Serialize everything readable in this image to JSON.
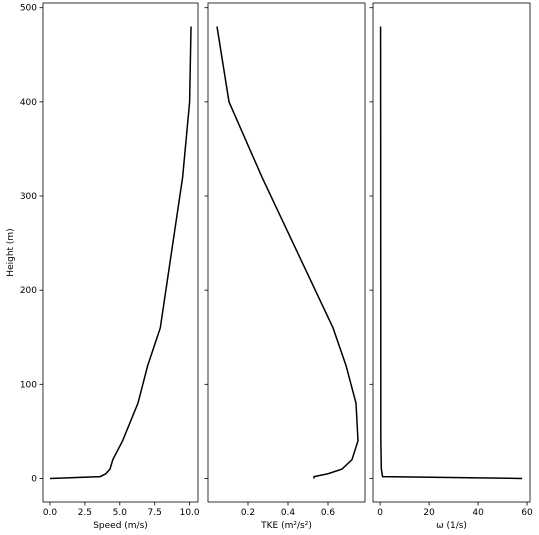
{
  "chart_data": [
    {
      "type": "line",
      "xlabel": "Speed (m/s)",
      "ylabel": "Height (m)",
      "color": "#000000",
      "x": [
        0,
        3.6,
        4.0,
        4.3,
        4.5,
        5.2,
        6.3,
        7.0,
        7.9,
        8.7,
        9.5,
        10.0,
        10.1
      ],
      "values": [
        0,
        2,
        5,
        10,
        20,
        40,
        80,
        120,
        160,
        240,
        320,
        400,
        480
      ],
      "xlim": [
        -0.5,
        10.6
      ],
      "xticks": [
        {
          "value": 0,
          "label": "0.0"
        },
        {
          "value": 2.5,
          "label": "2.5"
        },
        {
          "value": 5,
          "label": "5.0"
        },
        {
          "value": 7.5,
          "label": "7.5"
        },
        {
          "value": 10,
          "label": "10.0"
        }
      ],
      "ylim": [
        -25,
        505
      ],
      "yticks": [
        0,
        100,
        200,
        300,
        400,
        500
      ]
    },
    {
      "type": "line",
      "xlabel": "TKE (m²/s²)",
      "color": "#000000",
      "x": [
        0.53,
        0.53,
        0.6,
        0.67,
        0.72,
        0.75,
        0.74,
        0.69,
        0.625,
        0.27,
        0.105,
        0.045
      ],
      "values": [
        0,
        2,
        5,
        10,
        20,
        40,
        80,
        120,
        160,
        320,
        400,
        480
      ],
      "xlim": [
        0.0,
        0.785
      ],
      "xticks": [
        0.2,
        0.4,
        0.6
      ]
    },
    {
      "type": "line",
      "xlabel": "ω (1/s)",
      "color": "#000000",
      "x": [
        58,
        1,
        0.5,
        0.3,
        0.2
      ],
      "values": [
        0,
        2,
        10,
        40,
        480
      ],
      "xlim": [
        -2.9,
        61.2
      ],
      "xticks": [
        0,
        20,
        40,
        60
      ]
    }
  ]
}
